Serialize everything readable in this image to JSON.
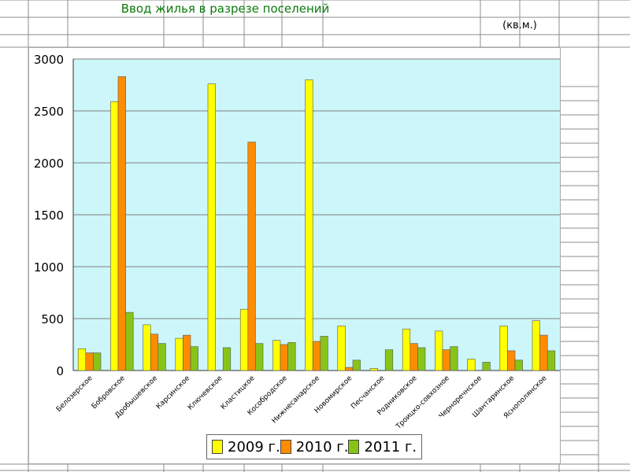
{
  "sheet": {
    "title": "Ввод жилья в разрезе поселений",
    "unit": "(кв.м.)"
  },
  "colors": {
    "plot_background": "#ccf6fa",
    "gridline": "#808080",
    "series": [
      "#ffff00",
      "#ff8c00",
      "#88c418"
    ]
  },
  "chart_data": {
    "type": "bar",
    "title": "",
    "xlabel": "",
    "ylabel": "",
    "ylim": [
      0,
      3000
    ],
    "yticks": [
      0,
      500,
      1000,
      1500,
      2000,
      2500,
      3000
    ],
    "grid": true,
    "legend_position": "bottom",
    "categories": [
      "Белозерское",
      "Бобровское",
      "Дробышевское",
      "Карсинское",
      "Ключевское",
      "Кластицкое",
      "Кособродское",
      "Нижнесанарское",
      "Новомирское",
      "Песчанское",
      "Родниковское",
      "Троицко-совхозное",
      "Черноречнское",
      "Шантаринское",
      "Яснополянское"
    ],
    "series": [
      {
        "name": "2009 г.",
        "values": [
          210,
          2590,
          440,
          310,
          2760,
          590,
          290,
          2800,
          430,
          20,
          400,
          380,
          110,
          430,
          480
        ]
      },
      {
        "name": "2010 г.",
        "values": [
          170,
          2830,
          350,
          340,
          0,
          2200,
          250,
          280,
          30,
          0,
          260,
          200,
          0,
          190,
          340
        ]
      },
      {
        "name": "2011 г.",
        "values": [
          170,
          560,
          260,
          230,
          220,
          260,
          270,
          330,
          100,
          200,
          220,
          230,
          80,
          100,
          190
        ]
      }
    ]
  }
}
